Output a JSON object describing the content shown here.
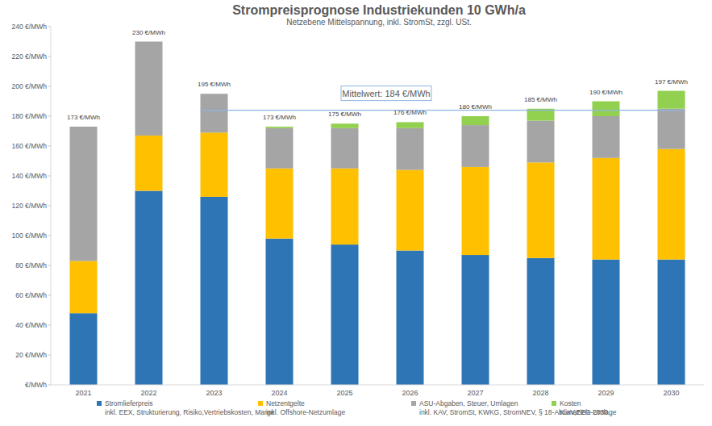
{
  "chart_data": {
    "type": "bar",
    "stacked": true,
    "grid": false,
    "legend": "bottom",
    "title": "Strompreisprognose Industriekunden 10 GWh/a",
    "subtitle": "Netzebene Mittelspannung, inkl. StromSt, zzgl. USt.",
    "categories": [
      "2021",
      "2022",
      "2023",
      "2024",
      "2025",
      "2026",
      "2027",
      "2028",
      "2029",
      "2030"
    ],
    "ylim": [
      0,
      240
    ],
    "yticks": [
      {
        "value": 0,
        "label": "€/MWh"
      },
      {
        "value": 20,
        "label": "20 €/MWh"
      },
      {
        "value": 40,
        "label": "40 €/MWh"
      },
      {
        "value": 60,
        "label": "60 €/MWh"
      },
      {
        "value": 80,
        "label": "80 €/MWh"
      },
      {
        "value": 100,
        "label": "100 €/MWh"
      },
      {
        "value": 120,
        "label": "120 €/MWh"
      },
      {
        "value": 140,
        "label": "140 €/MWh"
      },
      {
        "value": 160,
        "label": "160 €/MWh"
      },
      {
        "value": 180,
        "label": "180 €/MWh"
      },
      {
        "value": 200,
        "label": "200 €/MWh"
      },
      {
        "value": 220,
        "label": "220 €/MWh"
      },
      {
        "value": 240,
        "label": "240 €/MWh"
      }
    ],
    "series": [
      {
        "name": "Stromlieferpreis",
        "description": "inkl. EEX, Strukturierung, Risiko,Vertriebskosten, Marge",
        "color": "#2e75b6",
        "values": [
          48,
          130,
          126,
          98,
          94,
          90,
          87,
          85,
          84,
          84
        ]
      },
      {
        "name": "Netzentgelte",
        "description": "inkl. Offshore-Netzumlage",
        "color": "#ffc000",
        "values": [
          35,
          37,
          43,
          47,
          51,
          54,
          59,
          64,
          68,
          74
        ]
      },
      {
        "name": "ASU-Abgaben, Steuer, Umlagen",
        "description": "inkl. KAV, StromSt, KWKG, StromNEV, § 18-AbLaV,EEG-Umlage",
        "color": "#a5a5a5",
        "values": [
          90,
          63,
          26,
          27,
          27,
          28,
          28,
          28,
          28,
          27
        ]
      },
      {
        "name": "Kosten",
        "description": "Klimaziele 2030",
        "color": "#92d050",
        "values": [
          0,
          0,
          0,
          1,
          3,
          4,
          6,
          8,
          10,
          12
        ]
      }
    ],
    "annotations": [
      {
        "type": "text",
        "x": "2021",
        "y": 173,
        "text": "173 €/MWh"
      },
      {
        "type": "text",
        "x": "2022",
        "y": 230,
        "text": "230 €/MWh"
      },
      {
        "type": "text",
        "x": "2023",
        "y": 195,
        "text": "195 €/MWh"
      },
      {
        "type": "text",
        "x": "2024",
        "y": 173,
        "text": "173 €/MWh"
      },
      {
        "type": "text",
        "x": "2025",
        "y": 175,
        "text": "175 €/MWh"
      },
      {
        "type": "text",
        "x": "2026",
        "y": 176,
        "text": "176 €/MWh"
      },
      {
        "type": "text",
        "x": "2027",
        "y": 180,
        "text": "180 €/MWh"
      },
      {
        "type": "text",
        "x": "2028",
        "y": 185,
        "text": "185 €/MWh"
      },
      {
        "type": "text",
        "x": "2029",
        "y": 190,
        "text": "190 €/MWh"
      },
      {
        "type": "text",
        "x": "2030",
        "y": 197,
        "text": "197 €/MWh"
      },
      {
        "type": "hline",
        "x": [
          "2023",
          "2030"
        ],
        "y": 184,
        "text": "Mittelwert: 184 €/MWh",
        "color": "#8eb4e3"
      }
    ]
  }
}
